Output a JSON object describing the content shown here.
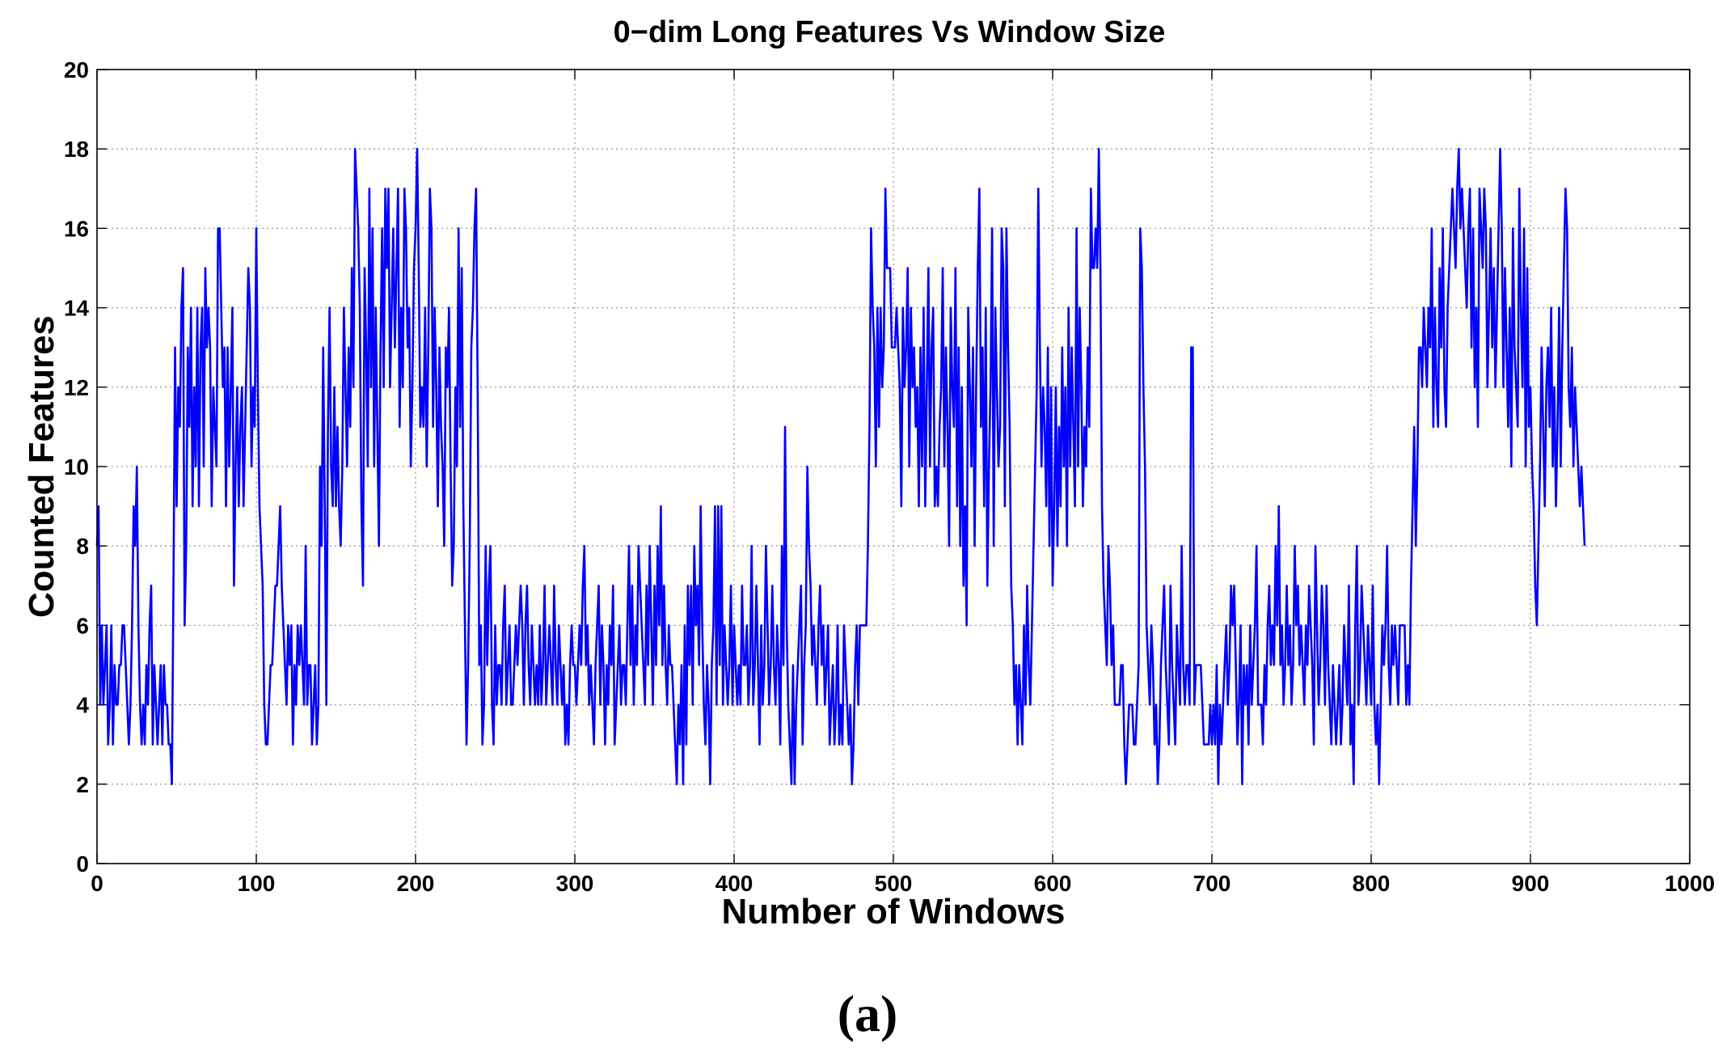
{
  "chart_data": {
    "type": "line",
    "title": "0−dim Long Features Vs Window Size",
    "xlabel": "Number of Windows",
    "ylabel": "Counted Features",
    "caption": "(a)",
    "xlim": [
      0,
      1000
    ],
    "ylim": [
      0,
      20
    ],
    "xticks": [
      "0",
      "100",
      "200",
      "300",
      "400",
      "500",
      "600",
      "700",
      "800",
      "900",
      "1000"
    ],
    "yticks": [
      "0",
      "2",
      "4",
      "6",
      "8",
      "10",
      "12",
      "14",
      "16",
      "18",
      "20"
    ],
    "grid": true,
    "color": "#0000ff",
    "series": [
      {
        "values": [
          8,
          9,
          4,
          6,
          4,
          5,
          6,
          3,
          4,
          6,
          3,
          5,
          4,
          4,
          5,
          5,
          6,
          6,
          5,
          4,
          3,
          4,
          6,
          9,
          8,
          10,
          6,
          4,
          3,
          4,
          3,
          5,
          4,
          6,
          7,
          3,
          5,
          4,
          3,
          4,
          5,
          3,
          5,
          4,
          4,
          3,
          3,
          2,
          7,
          13,
          9,
          12,
          11,
          14,
          15,
          6,
          8,
          13,
          11,
          14,
          9,
          12,
          10,
          14,
          9,
          13,
          14,
          10,
          15,
          13,
          14,
          13,
          9,
          12,
          11,
          10,
          16,
          16,
          14,
          12,
          13,
          9,
          13,
          10,
          12,
          14,
          7,
          10,
          12,
          9,
          11,
          12,
          9,
          11,
          13,
          15,
          14,
          10,
          12,
          11,
          16,
          12,
          9,
          8,
          7,
          4,
          3,
          3,
          4,
          5,
          5,
          6,
          7,
          7,
          8,
          9,
          7,
          6,
          5,
          4,
          6,
          5,
          6,
          3,
          5,
          4,
          6,
          5,
          6,
          5,
          4,
          8,
          4,
          5,
          5,
          3,
          4,
          5,
          3,
          4,
          10,
          8,
          13,
          9,
          4,
          11,
          14,
          10,
          9,
          12,
          9,
          11,
          9,
          8,
          10,
          14,
          12,
          10,
          13,
          11,
          15,
          12,
          18,
          17,
          16,
          14,
          9,
          7,
          15,
          13,
          10,
          17,
          12,
          16,
          10,
          14,
          11,
          8,
          13,
          16,
          12,
          17,
          15,
          17,
          12,
          14,
          16,
          13,
          15,
          17,
          11,
          14,
          12,
          17,
          16,
          13,
          14,
          10,
          12,
          15,
          16,
          18,
          15,
          11,
          12,
          11,
          14,
          10,
          13,
          17,
          16,
          11,
          14,
          12,
          9,
          13,
          11,
          10,
          8,
          13,
          12,
          14,
          10,
          7,
          8,
          12,
          10,
          16,
          11,
          15,
          9,
          6,
          3,
          5,
          8,
          13,
          14,
          16,
          17,
          12,
          5,
          6,
          3,
          4,
          8,
          5,
          7,
          8,
          4,
          3,
          6,
          4,
          5,
          5,
          4,
          6,
          7,
          4,
          5,
          6,
          4,
          4,
          5,
          6,
          5,
          6,
          7,
          6,
          4,
          6,
          7,
          5,
          4,
          6,
          5,
          4,
          5,
          4,
          6,
          4,
          5,
          7,
          4,
          5,
          6,
          5,
          4,
          7,
          5,
          4,
          6,
          5,
          4,
          5,
          3,
          4,
          3,
          5,
          6,
          5,
          5,
          4,
          5,
          6,
          5,
          7,
          8,
          5,
          6,
          4,
          5,
          4,
          3,
          5,
          6,
          7,
          4,
          6,
          5,
          3,
          5,
          4,
          6,
          5,
          7,
          3,
          4,
          5,
          6,
          4,
          5,
          5,
          4,
          6,
          8,
          5,
          7,
          4,
          6,
          5,
          8,
          7,
          6,
          5,
          4,
          7,
          5,
          8,
          6,
          4,
          7,
          5,
          8,
          6,
          9,
          5,
          7,
          5,
          4,
          6,
          5,
          5,
          4,
          3,
          2,
          4,
          3,
          5,
          2,
          6,
          3,
          7,
          5,
          7,
          4,
          8,
          6,
          7,
          5,
          9,
          6,
          4,
          3,
          5,
          4,
          2,
          5,
          6,
          9,
          4,
          9,
          5,
          9,
          4,
          6,
          5,
          4,
          5,
          7,
          4,
          6,
          5,
          4,
          5,
          4,
          7,
          5,
          5,
          6,
          4,
          5,
          8,
          4,
          5,
          7,
          5,
          3,
          6,
          4,
          5,
          8,
          6,
          4,
          5,
          7,
          5,
          4,
          6,
          5,
          3,
          8,
          5,
          11,
          6,
          4,
          3,
          2,
          5,
          2,
          4,
          5,
          6,
          7,
          3,
          5,
          6,
          10,
          8,
          7,
          5,
          6,
          5,
          4,
          6,
          7,
          5,
          6,
          4,
          5,
          6,
          3,
          4,
          5,
          3,
          4,
          6,
          3,
          4,
          3,
          6,
          5,
          4,
          3,
          4,
          2,
          3,
          5,
          6,
          4,
          6,
          6,
          6,
          6,
          6,
          8,
          11,
          16,
          14,
          13,
          10,
          14,
          11,
          14,
          12,
          13,
          17,
          15,
          15,
          15,
          13,
          13,
          13,
          14,
          13,
          12,
          9,
          14,
          12,
          13,
          15,
          10,
          14,
          12,
          13,
          11,
          12,
          9,
          13,
          10,
          14,
          9,
          12,
          15,
          10,
          13,
          14,
          9,
          10,
          9,
          11,
          12,
          15,
          10,
          13,
          11,
          8,
          14,
          12,
          11,
          15,
          9,
          13,
          8,
          12,
          7,
          9,
          6,
          14,
          12,
          10,
          13,
          8,
          12,
          15,
          17,
          11,
          13,
          9,
          14,
          7,
          10,
          12,
          16,
          8,
          14,
          12,
          10,
          11,
          16,
          15,
          9,
          16,
          13,
          11,
          7,
          6,
          4,
          5,
          3,
          5,
          4,
          3,
          6,
          4,
          7,
          5,
          4,
          6,
          8,
          10,
          12,
          17,
          13,
          10,
          12,
          11,
          9,
          13,
          8,
          12,
          7,
          9,
          12,
          8,
          11,
          9,
          13,
          10,
          12,
          8,
          14,
          10,
          13,
          11,
          9,
          16,
          10,
          14,
          12,
          9,
          11,
          10,
          13,
          11,
          17,
          15,
          15,
          16,
          15,
          18,
          15,
          9,
          7,
          6,
          5,
          8,
          7,
          5,
          6,
          4,
          4,
          4,
          4,
          5,
          5,
          3,
          2,
          3,
          4,
          4,
          4,
          3,
          3,
          4,
          5,
          16,
          15,
          12,
          10,
          6,
          5,
          4,
          6,
          5,
          3,
          4,
          2,
          3,
          5,
          6,
          7,
          5,
          4,
          3,
          7,
          5,
          4,
          3,
          6,
          5,
          4,
          8,
          5,
          4,
          5,
          5,
          4,
          13,
          13,
          4,
          5,
          5,
          5,
          5,
          4,
          3,
          3,
          3,
          3,
          4,
          3,
          4,
          3,
          5,
          2,
          4,
          3,
          4,
          5,
          6,
          4,
          5,
          7,
          6,
          7,
          5,
          3,
          4,
          6,
          2,
          5,
          4,
          5,
          3,
          6,
          4,
          5,
          6,
          8,
          4,
          4,
          4,
          3,
          5,
          4,
          6,
          7,
          5,
          6,
          5,
          8,
          6,
          9,
          5,
          6,
          4,
          5,
          7,
          5,
          6,
          4,
          5,
          8,
          6,
          7,
          5,
          6,
          5,
          4,
          6,
          5,
          7,
          6,
          5,
          3,
          8,
          6,
          4,
          5,
          7,
          6,
          4,
          7,
          5,
          4,
          3,
          5,
          4,
          3,
          4,
          5,
          3,
          4,
          6,
          5,
          4,
          7,
          3,
          4,
          2,
          6,
          8,
          4,
          5,
          7,
          6,
          5,
          4,
          6,
          5,
          4,
          7,
          4,
          3,
          4,
          2,
          4,
          6,
          5,
          6,
          8,
          5,
          4,
          6,
          5,
          6,
          5,
          4,
          6,
          6,
          6,
          6,
          4,
          5,
          4,
          7,
          9,
          11,
          8,
          10,
          13,
          13,
          12,
          14,
          13,
          12,
          14,
          13,
          16,
          11,
          14,
          12,
          11,
          15,
          13,
          16,
          12,
          11,
          14,
          15,
          16,
          17,
          16,
          15,
          17,
          18,
          16,
          17,
          16,
          15,
          14,
          16,
          17,
          13,
          16,
          12,
          14,
          11,
          17,
          16,
          15,
          17,
          16,
          12,
          14,
          16,
          13,
          15,
          12,
          14,
          16,
          18,
          16,
          12,
          15,
          13,
          11,
          14,
          10,
          16,
          13,
          12,
          11,
          17,
          14,
          12,
          16,
          10,
          15,
          11,
          12,
          10,
          9,
          7,
          6,
          8,
          10,
          13,
          11,
          9,
          12,
          13,
          11,
          14,
          10,
          12,
          9,
          11,
          14,
          10,
          13,
          15,
          17,
          16,
          12,
          11,
          13,
          10,
          12,
          11,
          10,
          9,
          10,
          9,
          8
        ]
      }
    ]
  }
}
